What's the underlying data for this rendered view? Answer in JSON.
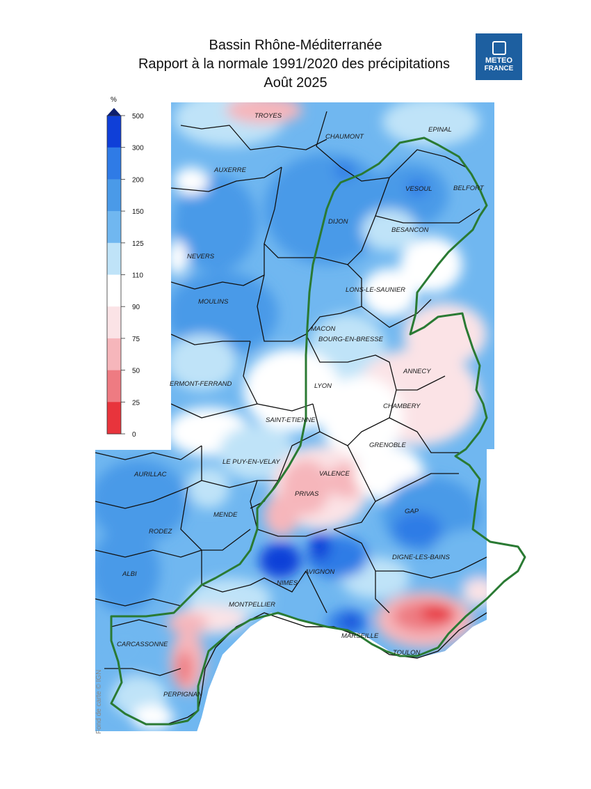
{
  "header": {
    "title_line1": "Bassin Rhône-Méditerranée",
    "title_line2": "Rapport à la normale 1991/2020 des précipitations",
    "title_line3": "Août 2025"
  },
  "logo": {
    "line1": "METEO",
    "line2": "FRANCE",
    "icon": "meteo-france-logo-icon"
  },
  "legend": {
    "unit": "%",
    "ticks": [
      "500",
      "300",
      "200",
      "150",
      "125",
      "110",
      "90",
      "75",
      "50",
      "25",
      "0"
    ],
    "colors": [
      "#0f3fd8",
      "#2f7be6",
      "#4a9ae8",
      "#70b7f0",
      "#bfe3f8",
      "#ffffff",
      "#fbe3e6",
      "#f6b6bb",
      "#ee7b82",
      "#e8343c"
    ]
  },
  "colors": {
    "basin_outline": "#2a7a33",
    "dept_lines": "#111111"
  },
  "cities": [
    "TROYES",
    "CHAUMONT",
    "EPINAL",
    "AUXERRE",
    "VESOUL",
    "BELFORT",
    "DIJON",
    "BESANCON",
    "NEVERS",
    "LONS-LE-SAUNIER",
    "MOULINS",
    "MACON",
    "BOURG-EN-BRESSE",
    "ANNECY",
    "ERMONT-FERRAND",
    "LYON",
    "CHAMBERY",
    "SAINT-ETIENNE",
    "GRENOBLE",
    "AURILLAC",
    "LE PUY-EN-VELAY",
    "VALENCE",
    "PRIVAS",
    "MENDE",
    "GAP",
    "RODEZ",
    "DIGNE-LES-BAINS",
    "AVIGNON",
    "NIMES",
    "ALBI",
    "MONTPELLIER",
    "MARSEILLE",
    "CARCASSONNE",
    "TOULON",
    "PERPIGNAN"
  ],
  "credit": "Fond de carte © IGN"
}
